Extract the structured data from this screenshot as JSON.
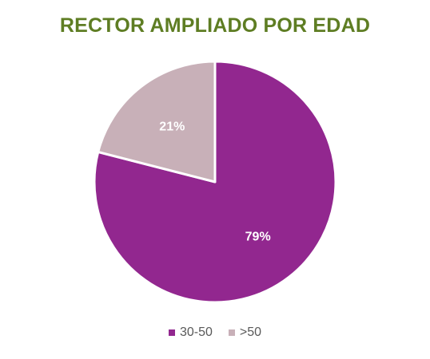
{
  "chart_data": {
    "type": "pie",
    "title": "RECTOR AMPLIADO POR EDAD",
    "categories": [
      "30-50",
      ">50"
    ],
    "values": [
      79,
      21
    ],
    "value_labels": [
      "79%",
      "21%"
    ],
    "colors": [
      "#92278f",
      "#c8b0b8"
    ],
    "title_color": "#5e7d23",
    "start_angle": "12 o'clock",
    "direction": "clockwise",
    "legend_position": "bottom"
  }
}
